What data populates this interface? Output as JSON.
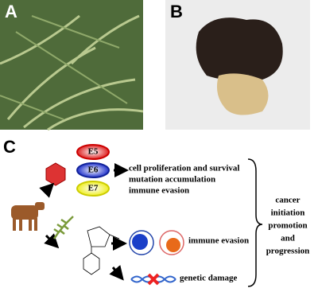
{
  "panels": {
    "a": {
      "label": "A"
    },
    "b": {
      "label": "B"
    },
    "c": {
      "label": "C"
    }
  },
  "oncoproteins": [
    "E5",
    "E6",
    "E7"
  ],
  "effects": {
    "oncoprotein": [
      "cell proliferation and survival",
      "mutation accumulation",
      "immune evasion"
    ],
    "immune": "immune evasion",
    "genetic": "genetic damage"
  },
  "outcome": [
    "cancer",
    "initiation",
    "promotion",
    "and",
    "progression"
  ]
}
